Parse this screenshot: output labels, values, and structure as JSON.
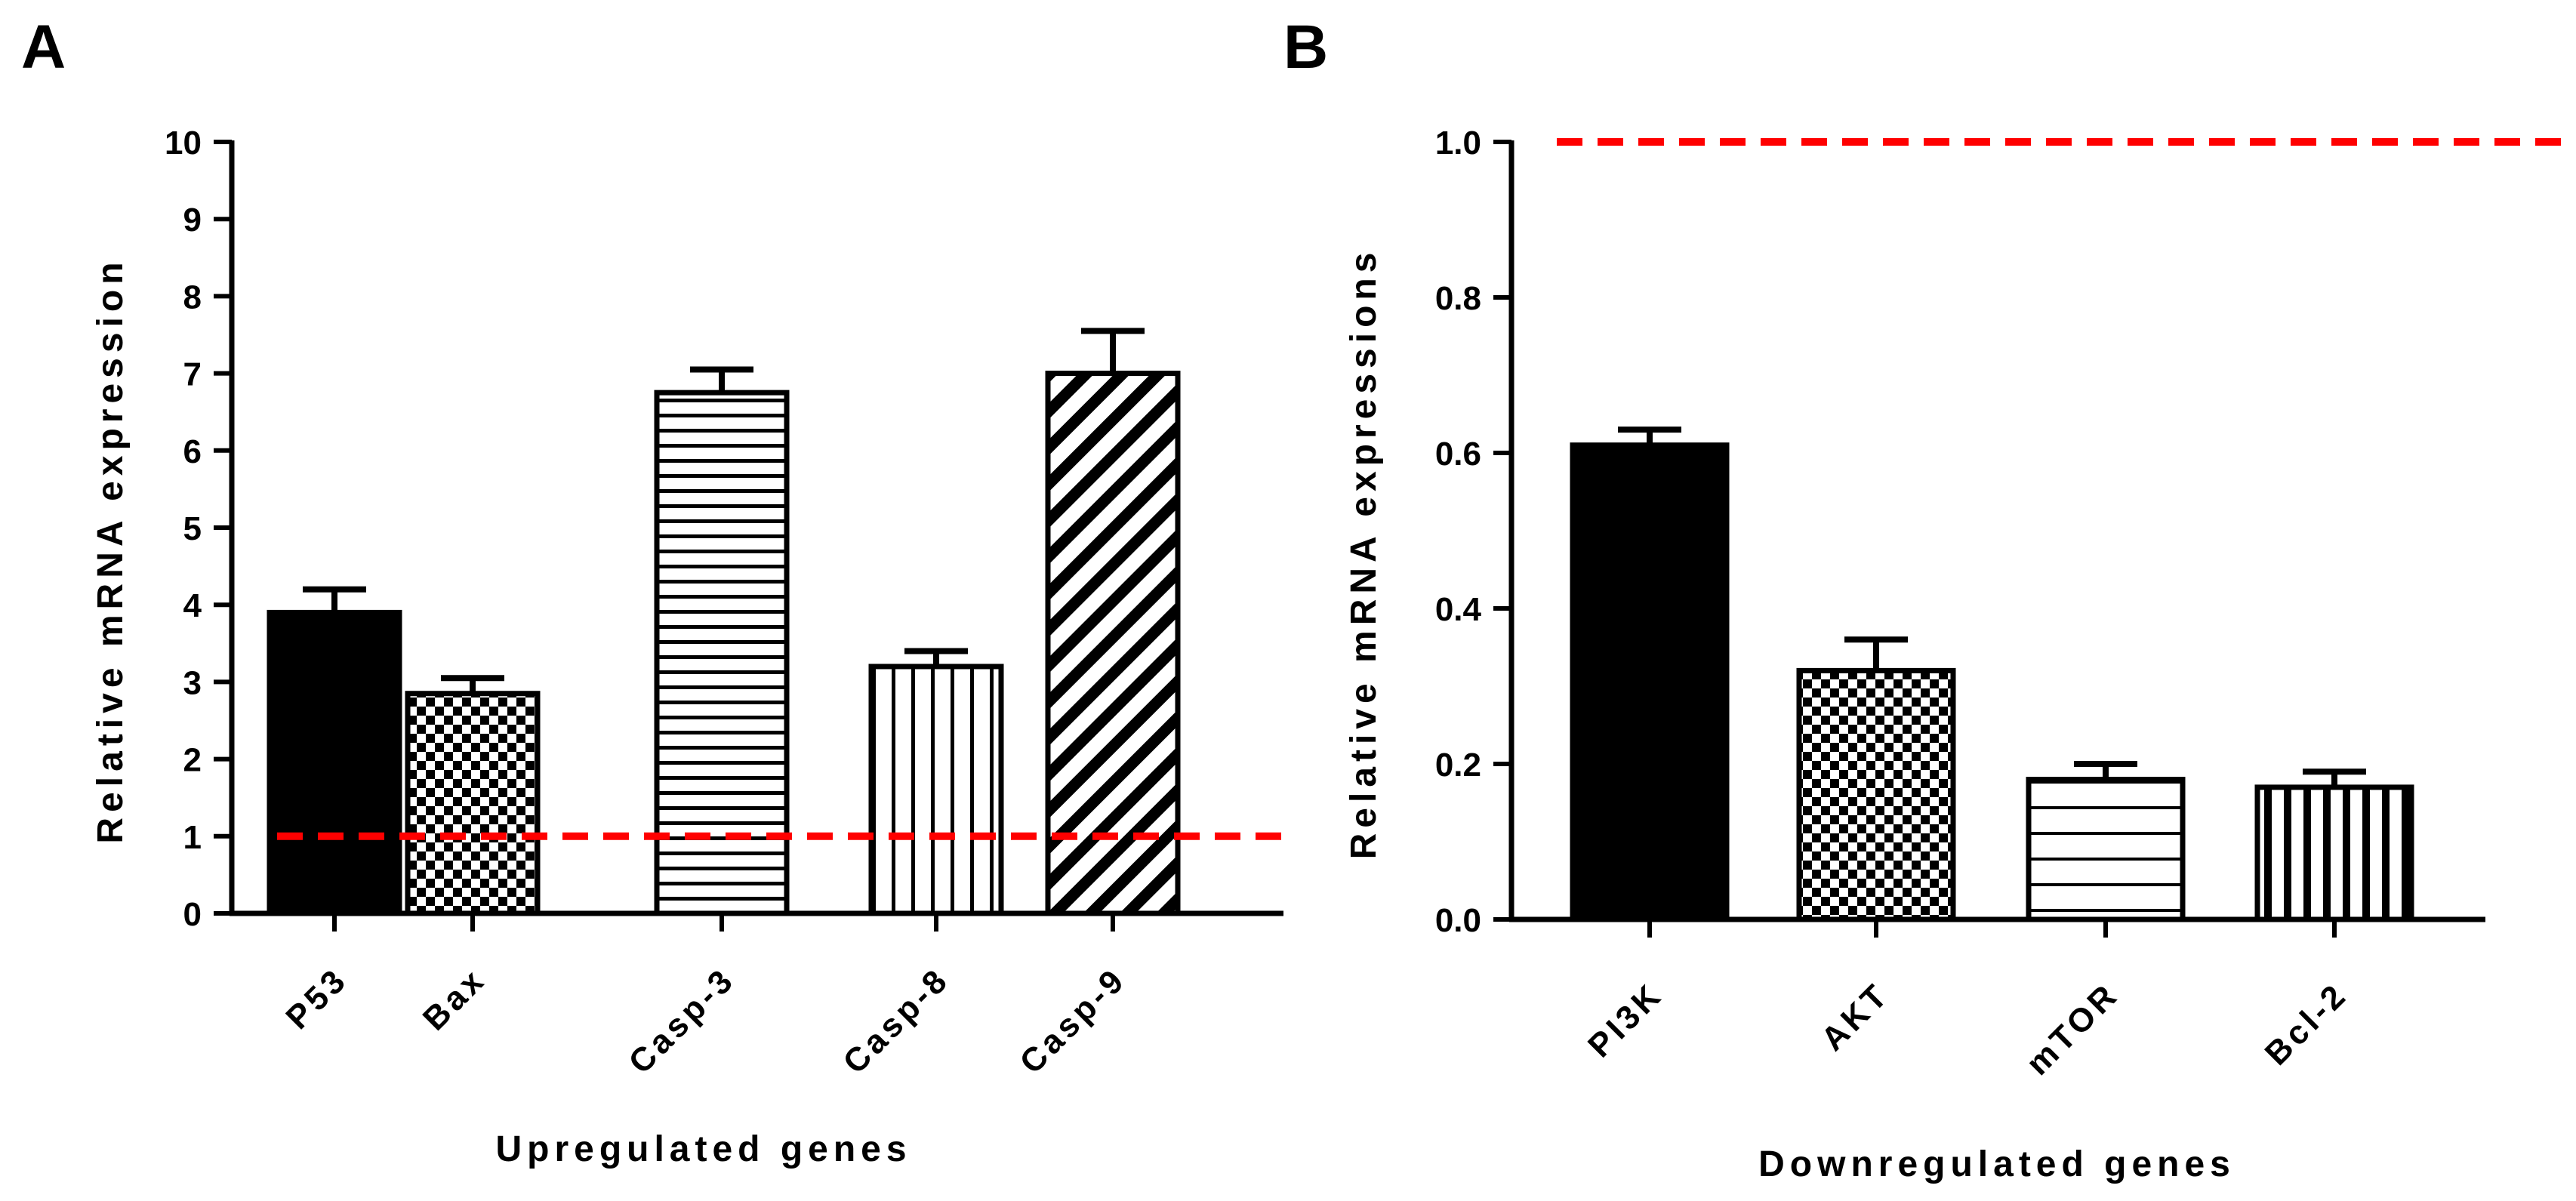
{
  "chart_data": [
    {
      "panel": "A",
      "type": "bar",
      "categories": [
        "P53",
        "Bax",
        "Casp-3",
        "Casp-8",
        "Casp-9"
      ],
      "values": [
        3.9,
        2.85,
        6.75,
        3.2,
        7.0
      ],
      "error_upper": [
        4.2,
        3.05,
        7.05,
        3.4,
        7.55
      ],
      "patterns": [
        "solid",
        "checker",
        "hlines",
        "vlines",
        "diag"
      ],
      "reference_line": 1,
      "xlabel": "Upregulated genes",
      "ylabel": "Relative mRNA expression",
      "ylim": [
        0,
        10
      ],
      "yticks": [
        "0",
        "1",
        "2",
        "3",
        "4",
        "5",
        "6",
        "7",
        "8",
        "9",
        "10"
      ],
      "legend": "none"
    },
    {
      "panel": "B",
      "type": "bar",
      "categories": [
        "PI3K",
        "AKT",
        "mTOR",
        "Bcl-2"
      ],
      "values": [
        0.61,
        0.32,
        0.18,
        0.17
      ],
      "error_upper": [
        0.63,
        0.36,
        0.2,
        0.19
      ],
      "patterns": [
        "solid",
        "checker",
        "hlines-wide",
        "vlines-thick"
      ],
      "reference_line": 1.0,
      "xlabel": "Downregulated genes",
      "ylabel": "Relative mRNA expressions",
      "ylim": [
        0,
        1.0
      ],
      "yticks": [
        "0.0",
        "0.2",
        "0.4",
        "0.6",
        "0.8",
        "1.0"
      ],
      "legend": "none"
    }
  ],
  "colors": {
    "bar": "#000000",
    "reference_line": "#ff0000",
    "background": "#ffffff"
  }
}
